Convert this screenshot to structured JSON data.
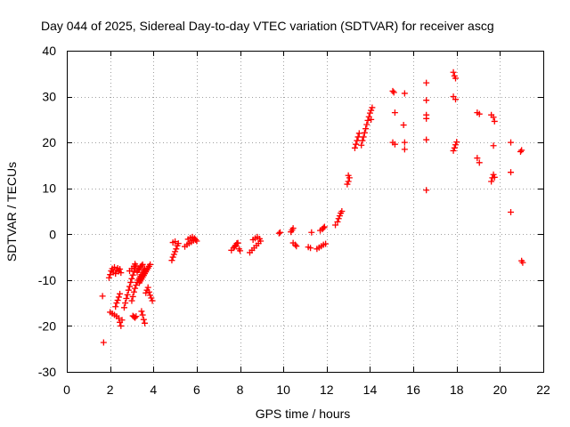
{
  "chart_data": {
    "type": "scatter",
    "title": "Day 044 of 2025, Sidereal Day-to-day VTEC variation (SDTVAR) for receiver ascg",
    "xlabel": "GPS time / hours",
    "ylabel": "SDTVAR / TECUs",
    "xlim": [
      0,
      22
    ],
    "ylim": [
      -30,
      40
    ],
    "xticks": [
      0,
      2,
      4,
      6,
      8,
      10,
      12,
      14,
      16,
      18,
      20,
      22
    ],
    "yticks": [
      -30,
      -20,
      -10,
      0,
      10,
      20,
      30,
      40
    ],
    "xtick_labels": [
      "0",
      "2",
      "4",
      "6",
      "8",
      "10",
      "12",
      "14",
      "16",
      "18",
      "20",
      "22"
    ],
    "ytick_labels": [
      "-30",
      "-20",
      "-10",
      "0",
      "10",
      "20",
      "30",
      "40"
    ],
    "grid": true,
    "marker": "+",
    "color": "#ff0000",
    "series": [
      {
        "name": "SDTVAR",
        "points": [
          [
            1.65,
            -13.5
          ],
          [
            1.7,
            -23.6
          ],
          [
            1.95,
            -9.5
          ],
          [
            2.0,
            -8.8
          ],
          [
            2.05,
            -8.0
          ],
          [
            2.1,
            -7.5
          ],
          [
            2.15,
            -8.3
          ],
          [
            2.2,
            -7.2
          ],
          [
            2.25,
            -8.6
          ],
          [
            2.3,
            -7.8
          ],
          [
            2.35,
            -7.4
          ],
          [
            2.4,
            -8.1
          ],
          [
            2.45,
            -7.6
          ],
          [
            2.5,
            -8.4
          ],
          [
            2.0,
            -17.0
          ],
          [
            2.1,
            -17.3
          ],
          [
            2.2,
            -17.6
          ],
          [
            2.3,
            -17.9
          ],
          [
            2.4,
            -18.3
          ],
          [
            2.45,
            -19.2
          ],
          [
            2.5,
            -20.0
          ],
          [
            2.55,
            -18.7
          ],
          [
            2.25,
            -15.8
          ],
          [
            2.3,
            -15.0
          ],
          [
            2.35,
            -14.4
          ],
          [
            2.4,
            -13.7
          ],
          [
            2.45,
            -13.0
          ],
          [
            2.65,
            -16.0
          ],
          [
            2.7,
            -15.0
          ],
          [
            2.75,
            -14.0
          ],
          [
            2.8,
            -13.2
          ],
          [
            2.85,
            -12.2
          ],
          [
            2.9,
            -11.4
          ],
          [
            2.95,
            -10.5
          ],
          [
            3.0,
            -9.7
          ],
          [
            3.05,
            -8.9
          ],
          [
            3.1,
            -8.1
          ],
          [
            3.15,
            -7.4
          ],
          [
            3.2,
            -6.9
          ],
          [
            2.9,
            -8.0
          ],
          [
            3.0,
            -7.5
          ],
          [
            3.1,
            -7.0
          ],
          [
            3.15,
            -6.5
          ],
          [
            3.0,
            -14.5
          ],
          [
            3.05,
            -13.6
          ],
          [
            3.1,
            -12.6
          ],
          [
            3.15,
            -11.8
          ],
          [
            3.2,
            -11.1
          ],
          [
            3.25,
            -10.5
          ],
          [
            3.3,
            -10.0
          ],
          [
            3.35,
            -9.6
          ],
          [
            3.4,
            -9.2
          ],
          [
            3.45,
            -8.8
          ],
          [
            3.5,
            -8.3
          ],
          [
            3.55,
            -7.9
          ],
          [
            3.6,
            -7.5
          ],
          [
            3.05,
            -17.8
          ],
          [
            3.1,
            -18.0
          ],
          [
            3.15,
            -18.2
          ],
          [
            3.2,
            -17.9
          ],
          [
            3.25,
            -8.3
          ],
          [
            3.3,
            -7.8
          ],
          [
            3.35,
            -7.5
          ],
          [
            3.4,
            -7.1
          ],
          [
            3.45,
            -6.9
          ],
          [
            3.5,
            -6.6
          ],
          [
            3.35,
            -10.6
          ],
          [
            3.4,
            -10.2
          ],
          [
            3.45,
            -9.8
          ],
          [
            3.5,
            -9.4
          ],
          [
            3.55,
            -9.0
          ],
          [
            3.6,
            -8.6
          ],
          [
            3.65,
            -8.2
          ],
          [
            3.7,
            -7.8
          ],
          [
            3.75,
            -7.4
          ],
          [
            3.8,
            -7.0
          ],
          [
            3.85,
            -6.6
          ],
          [
            3.45,
            -16.8
          ],
          [
            3.5,
            -17.6
          ],
          [
            3.55,
            -18.6
          ],
          [
            3.6,
            -19.4
          ],
          [
            3.65,
            -12.8
          ],
          [
            3.7,
            -12.2
          ],
          [
            3.75,
            -11.6
          ],
          [
            3.8,
            -12.6
          ],
          [
            3.85,
            -13.3
          ],
          [
            3.9,
            -13.9
          ],
          [
            3.95,
            -14.5
          ],
          [
            4.85,
            -5.7
          ],
          [
            4.9,
            -5.0
          ],
          [
            4.95,
            -4.4
          ],
          [
            5.0,
            -3.8
          ],
          [
            5.05,
            -3.2
          ],
          [
            5.1,
            -2.5
          ],
          [
            5.15,
            -2.0
          ],
          [
            4.9,
            -1.8
          ],
          [
            5.0,
            -1.6
          ],
          [
            5.45,
            -2.7
          ],
          [
            5.55,
            -2.3
          ],
          [
            5.65,
            -2.0
          ],
          [
            5.75,
            -1.7
          ],
          [
            5.85,
            -1.4
          ],
          [
            5.95,
            -1.2
          ],
          [
            6.0,
            -1.5
          ],
          [
            5.7,
            -0.8
          ],
          [
            5.8,
            -0.6
          ],
          [
            5.9,
            -0.9
          ],
          [
            5.6,
            -1.1
          ],
          [
            7.6,
            -3.5
          ],
          [
            7.7,
            -3.0
          ],
          [
            7.75,
            -2.7
          ],
          [
            7.8,
            -2.4
          ],
          [
            7.85,
            -2.0
          ],
          [
            7.9,
            -1.9
          ],
          [
            7.95,
            -3.2
          ],
          [
            8.0,
            -3.6
          ],
          [
            8.45,
            -4.0
          ],
          [
            8.55,
            -3.5
          ],
          [
            8.65,
            -3.0
          ],
          [
            8.75,
            -2.5
          ],
          [
            8.85,
            -2.0
          ],
          [
            8.95,
            -1.5
          ],
          [
            8.6,
            -1.2
          ],
          [
            8.7,
            -0.9
          ],
          [
            8.8,
            -0.6
          ],
          [
            8.9,
            -1.0
          ],
          [
            9.8,
            0.2
          ],
          [
            9.85,
            0.4
          ],
          [
            10.35,
            0.5
          ],
          [
            10.4,
            0.9
          ],
          [
            10.45,
            1.3
          ],
          [
            10.45,
            -1.9
          ],
          [
            10.55,
            -2.3
          ],
          [
            10.6,
            -2.6
          ],
          [
            11.15,
            -2.8
          ],
          [
            11.25,
            -3.0
          ],
          [
            11.3,
            0.4
          ],
          [
            11.55,
            -3.2
          ],
          [
            11.65,
            -2.9
          ],
          [
            11.75,
            -2.6
          ],
          [
            11.85,
            -2.3
          ],
          [
            11.95,
            -2.1
          ],
          [
            11.7,
            0.8
          ],
          [
            11.8,
            1.1
          ],
          [
            11.85,
            1.4
          ],
          [
            11.9,
            1.6
          ],
          [
            12.4,
            2.0
          ],
          [
            12.5,
            2.7
          ],
          [
            12.55,
            3.4
          ],
          [
            12.6,
            4.0
          ],
          [
            12.65,
            4.6
          ],
          [
            12.7,
            5.0
          ],
          [
            12.95,
            10.9
          ],
          [
            13.0,
            11.5
          ],
          [
            13.05,
            12.3
          ],
          [
            13.0,
            12.8
          ],
          [
            13.3,
            18.8
          ],
          [
            13.35,
            19.6
          ],
          [
            13.4,
            20.4
          ],
          [
            13.45,
            21.2
          ],
          [
            13.5,
            22.0
          ],
          [
            13.6,
            19.4
          ],
          [
            13.65,
            20.4
          ],
          [
            13.7,
            21.2
          ],
          [
            13.75,
            22.1
          ],
          [
            13.8,
            23.0
          ],
          [
            13.85,
            23.9
          ],
          [
            13.9,
            24.8
          ],
          [
            13.95,
            25.6
          ],
          [
            14.0,
            26.4
          ],
          [
            14.05,
            27.0
          ],
          [
            14.1,
            27.6
          ],
          [
            14.05,
            25.0
          ],
          [
            15.05,
            31.2
          ],
          [
            15.1,
            30.9
          ],
          [
            15.15,
            26.5
          ],
          [
            15.05,
            20.0
          ],
          [
            15.15,
            19.6
          ],
          [
            15.6,
            30.7
          ],
          [
            15.55,
            23.8
          ],
          [
            15.6,
            20.0
          ],
          [
            15.6,
            18.5
          ],
          [
            16.6,
            33.0
          ],
          [
            16.6,
            29.2
          ],
          [
            16.6,
            26.0
          ],
          [
            16.6,
            25.2
          ],
          [
            16.6,
            20.6
          ],
          [
            16.6,
            9.6
          ],
          [
            17.85,
            35.3
          ],
          [
            17.9,
            34.5
          ],
          [
            17.95,
            34.0
          ],
          [
            17.85,
            30.0
          ],
          [
            17.95,
            29.4
          ],
          [
            17.85,
            18.2
          ],
          [
            17.9,
            18.8
          ],
          [
            17.95,
            19.5
          ],
          [
            18.0,
            20.1
          ],
          [
            18.95,
            26.5
          ],
          [
            19.05,
            26.2
          ],
          [
            18.95,
            16.6
          ],
          [
            19.05,
            15.6
          ],
          [
            19.6,
            26.0
          ],
          [
            19.7,
            25.5
          ],
          [
            19.75,
            24.6
          ],
          [
            19.7,
            19.3
          ],
          [
            19.6,
            11.5
          ],
          [
            19.65,
            12.3
          ],
          [
            19.7,
            13.0
          ],
          [
            19.75,
            12.4
          ],
          [
            20.5,
            20.0
          ],
          [
            20.5,
            13.5
          ],
          [
            20.5,
            4.8
          ],
          [
            20.95,
            18.0
          ],
          [
            21.0,
            18.3
          ],
          [
            21.0,
            -5.8
          ],
          [
            21.05,
            -6.2
          ]
        ]
      }
    ]
  }
}
